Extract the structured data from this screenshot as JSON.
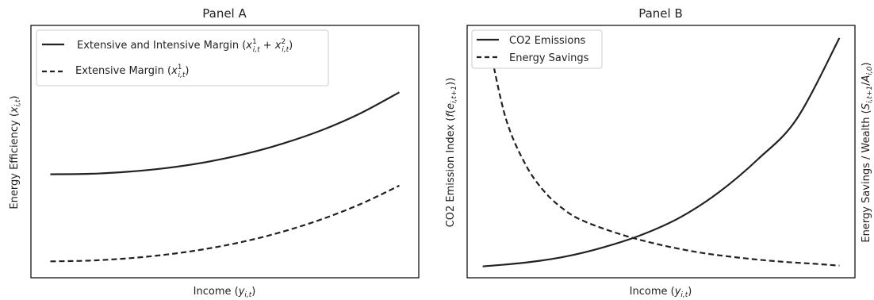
{
  "chart_data": [
    {
      "type": "line",
      "title": "Panel A",
      "xlabel": "Income (y_{i,t})",
      "ylabel": "Energy Efficiency (x_{i,t})",
      "ticks": "none",
      "legend_position": "top-left",
      "xlim": [
        0,
        1
      ],
      "ylim": [
        0,
        1
      ],
      "series": [
        {
          "name": "Extensive and Intensive Margin (x^1_{i,t} + x^2_{i,t})",
          "style": "solid",
          "color": "#222222",
          "x": [
            0.05,
            0.15,
            0.25,
            0.35,
            0.45,
            0.55,
            0.65,
            0.75,
            0.85,
            0.95
          ],
          "y": [
            0.41,
            0.412,
            0.42,
            0.435,
            0.458,
            0.49,
            0.532,
            0.585,
            0.652,
            0.735
          ]
        },
        {
          "name": "Extensive Margin (x^1_{i,t})",
          "style": "dashed",
          "color": "#222222",
          "x": [
            0.05,
            0.15,
            0.25,
            0.35,
            0.45,
            0.55,
            0.65,
            0.75,
            0.85,
            0.95
          ],
          "y": [
            0.065,
            0.068,
            0.077,
            0.092,
            0.114,
            0.144,
            0.183,
            0.232,
            0.292,
            0.365
          ]
        }
      ]
    },
    {
      "type": "line",
      "title": "Panel B",
      "xlabel": "Income (y_{i,t})",
      "ylabel": "CO2 Emission Index (f(e_{i,t+1}))",
      "ylabel_right": "Energy Savings / Wealth (S_{i,t+1}/A_{i,0})",
      "ticks": "none",
      "legend_position": "top-left",
      "xlim": [
        0,
        1
      ],
      "ylim": [
        0,
        1
      ],
      "series": [
        {
          "name": "CO2 Emissions",
          "style": "solid",
          "color": "#222222",
          "x": [
            0.04,
            0.15,
            0.25,
            0.35,
            0.45,
            0.55,
            0.65,
            0.75,
            0.85,
            0.96
          ],
          "y": [
            0.045,
            0.06,
            0.083,
            0.12,
            0.17,
            0.24,
            0.34,
            0.47,
            0.63,
            0.95
          ]
        },
        {
          "name": "Energy Savings",
          "style": "dashed",
          "color": "#222222",
          "x": [
            0.06,
            0.1,
            0.15,
            0.2,
            0.25,
            0.3,
            0.4,
            0.5,
            0.6,
            0.7,
            0.8,
            0.9,
            0.96
          ],
          "y": [
            0.9,
            0.63,
            0.45,
            0.34,
            0.27,
            0.225,
            0.17,
            0.13,
            0.1,
            0.08,
            0.065,
            0.055,
            0.048
          ]
        }
      ]
    }
  ]
}
